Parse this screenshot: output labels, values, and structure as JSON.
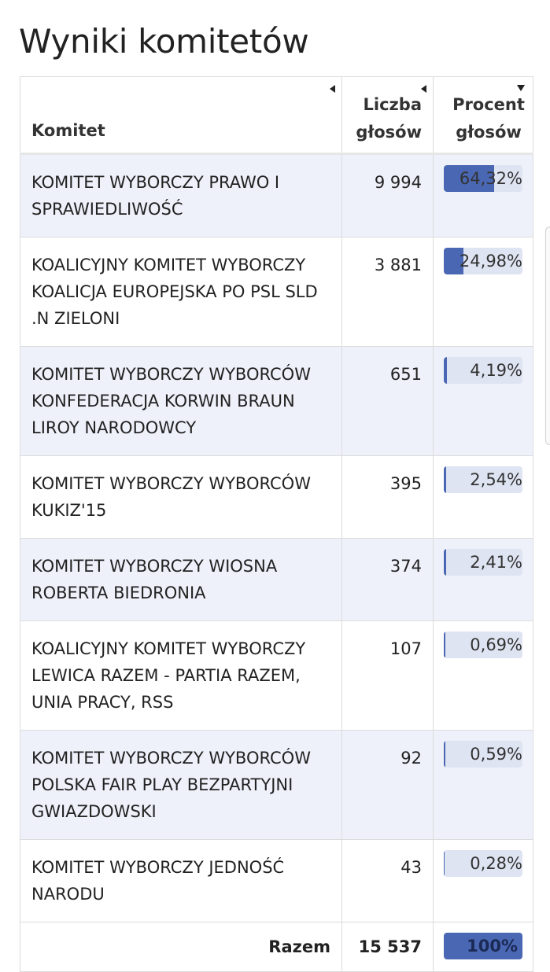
{
  "page_title": "Wyniki komitetów",
  "table": {
    "headers": {
      "name": "Komitet",
      "votes": "Liczba głosów",
      "percent": "Procent głosów"
    },
    "rows": [
      {
        "name": "KOMITET WYBORCZY PRAWO I SPRAWIEDLIWOŚĆ",
        "votes": "9 994",
        "percent": "64,32%",
        "fraction": 0.6432
      },
      {
        "name": "KOALICYJNY KOMITET WYBORCZY KOALICJA EUROPEJSKA PO PSL SLD .N ZIELONI",
        "votes": "3 881",
        "percent": "24,98%",
        "fraction": 0.2498
      },
      {
        "name": "KOMITET WYBORCZY WYBORCÓW KONFEDERACJA KORWIN BRAUN LIROY NARODOWCY",
        "votes": "651",
        "percent": "4,19%",
        "fraction": 0.0419
      },
      {
        "name": "KOMITET WYBORCZY WYBORCÓW KUKIZ'15",
        "votes": "395",
        "percent": "2,54%",
        "fraction": 0.0254
      },
      {
        "name": "KOMITET WYBORCZY WIOSNA ROBERTA BIEDRONIA",
        "votes": "374",
        "percent": "2,41%",
        "fraction": 0.0241
      },
      {
        "name": "KOALICYJNY KOMITET WYBORCZY LEWICA RAZEM - PARTIA RAZEM, UNIA PRACY, RSS",
        "votes": "107",
        "percent": "0,69%",
        "fraction": 0.0069
      },
      {
        "name": "KOMITET WYBORCZY WYBORCÓW POLSKA FAIR PLAY BEZPARTYJNI GWIAZDOWSKI",
        "votes": "92",
        "percent": "0,59%",
        "fraction": 0.0059
      },
      {
        "name": "KOMITET WYBORCZY JEDNOŚĆ NARODU",
        "votes": "43",
        "percent": "0,28%",
        "fraction": 0.0028
      }
    ],
    "total": {
      "label": "Razem",
      "votes": "15 537",
      "percent": "100%",
      "fraction": 1.0
    }
  },
  "colors": {
    "bar_fill": "#4a67b3",
    "bar_track": "#dfe4f2",
    "row_shade": "#eef1fa"
  }
}
